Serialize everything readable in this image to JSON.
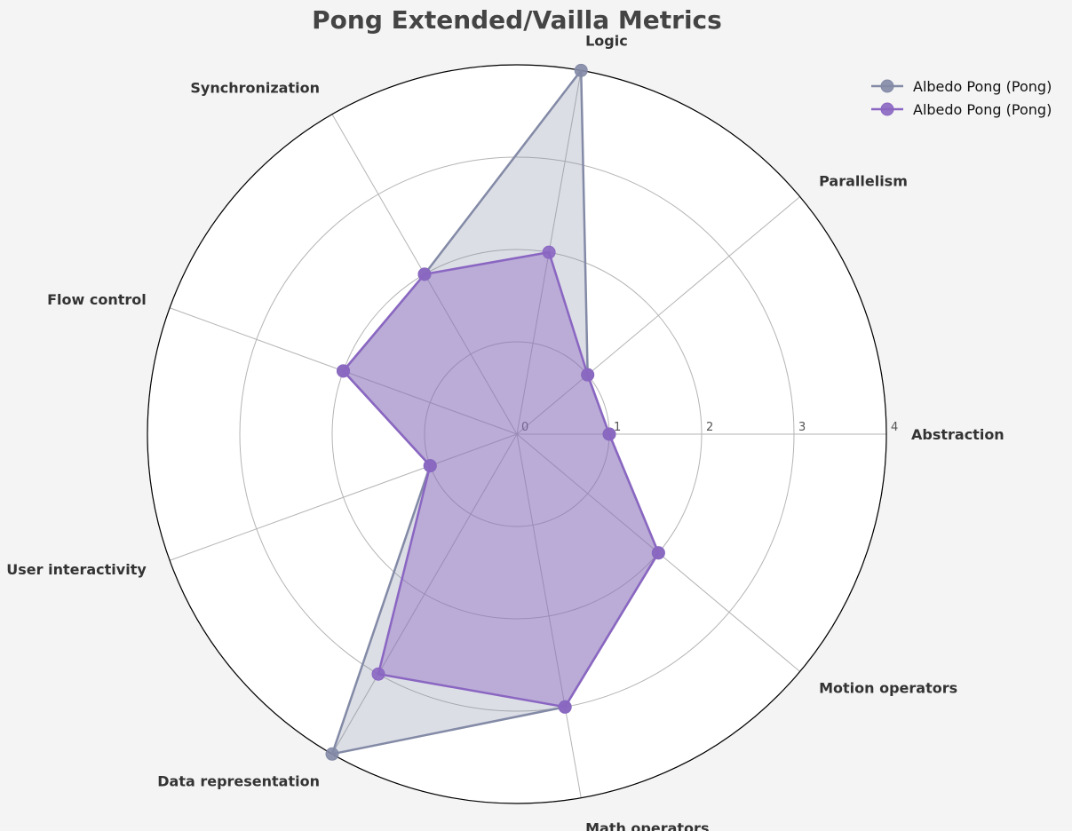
{
  "chart_data": {
    "type": "radar",
    "title": "Pong Extended/Vailla Metrics",
    "axes": [
      "Abstraction",
      "Parallelism",
      "Logic",
      "Synchronization",
      "Flow control",
      "User interactivity",
      "Data representation",
      "Math operators",
      "Motion operators"
    ],
    "rlim": [
      0,
      4
    ],
    "rticks": [
      "0",
      "1",
      "2",
      "3",
      "4"
    ],
    "grid": true,
    "legend_position": "top-right",
    "series": [
      {
        "name": "Albedo Pong (Pong)",
        "color": "#838aa6",
        "values": [
          1,
          1,
          4,
          2,
          2,
          1,
          4,
          3,
          2
        ]
      },
      {
        "name": "Albedo Pong (Pong)",
        "color": "#8a66c2",
        "values": [
          1,
          1,
          2,
          2,
          2,
          1,
          3,
          3,
          2
        ]
      }
    ]
  }
}
